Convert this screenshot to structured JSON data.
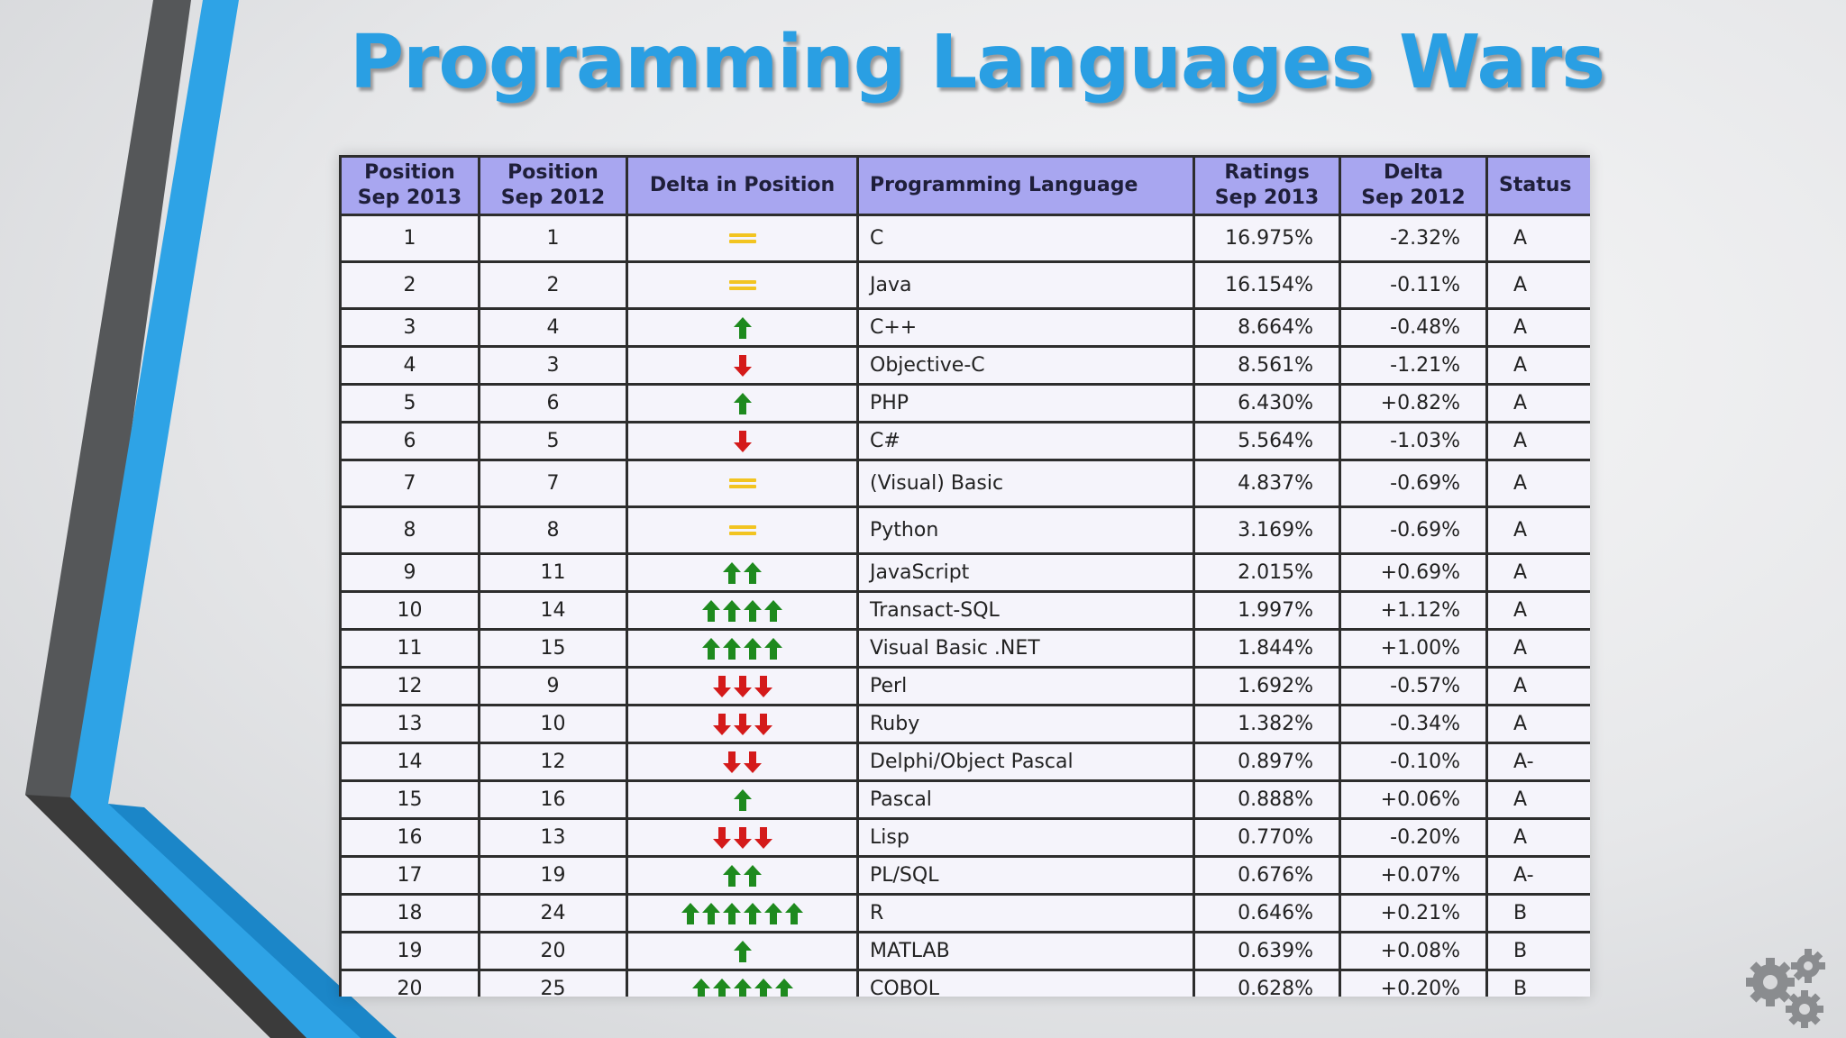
{
  "slide": {
    "title": "Programming Languages Wars"
  },
  "table": {
    "headers": {
      "pos2013": [
        "Position",
        "Sep 2013"
      ],
      "pos2012": [
        "Position",
        "Sep 2012"
      ],
      "delta_position": "Delta in Position",
      "language": "Programming Language",
      "ratings": [
        "Ratings",
        "Sep 2013"
      ],
      "delta": [
        "Delta",
        "Sep 2012"
      ],
      "status": "Status"
    },
    "rows": [
      {
        "pos2013": "1",
        "pos2012": "1",
        "change": 0,
        "language": "C",
        "rating": "16.975%",
        "delta": "-2.32%",
        "status": "A",
        "tall": true
      },
      {
        "pos2013": "2",
        "pos2012": "2",
        "change": 0,
        "language": "Java",
        "rating": "16.154%",
        "delta": "-0.11%",
        "status": "A",
        "tall": true
      },
      {
        "pos2013": "3",
        "pos2012": "4",
        "change": 1,
        "language": "C++",
        "rating": "8.664%",
        "delta": "-0.48%",
        "status": "A"
      },
      {
        "pos2013": "4",
        "pos2012": "3",
        "change": -1,
        "language": "Objective-C",
        "rating": "8.561%",
        "delta": "-1.21%",
        "status": "A"
      },
      {
        "pos2013": "5",
        "pos2012": "6",
        "change": 1,
        "language": "PHP",
        "rating": "6.430%",
        "delta": "+0.82%",
        "status": "A"
      },
      {
        "pos2013": "6",
        "pos2012": "5",
        "change": -1,
        "language": "C#",
        "rating": "5.564%",
        "delta": "-1.03%",
        "status": "A"
      },
      {
        "pos2013": "7",
        "pos2012": "7",
        "change": 0,
        "language": "(Visual) Basic",
        "rating": "4.837%",
        "delta": "-0.69%",
        "status": "A",
        "tall": true
      },
      {
        "pos2013": "8",
        "pos2012": "8",
        "change": 0,
        "language": "Python",
        "rating": "3.169%",
        "delta": "-0.69%",
        "status": "A",
        "tall": true
      },
      {
        "pos2013": "9",
        "pos2012": "11",
        "change": 2,
        "language": "JavaScript",
        "rating": "2.015%",
        "delta": "+0.69%",
        "status": "A"
      },
      {
        "pos2013": "10",
        "pos2012": "14",
        "change": 4,
        "language": "Transact-SQL",
        "rating": "1.997%",
        "delta": "+1.12%",
        "status": "A"
      },
      {
        "pos2013": "11",
        "pos2012": "15",
        "change": 4,
        "language": "Visual Basic .NET",
        "rating": "1.844%",
        "delta": "+1.00%",
        "status": "A"
      },
      {
        "pos2013": "12",
        "pos2012": "9",
        "change": -3,
        "language": "Perl",
        "rating": "1.692%",
        "delta": "-0.57%",
        "status": "A"
      },
      {
        "pos2013": "13",
        "pos2012": "10",
        "change": -3,
        "language": "Ruby",
        "rating": "1.382%",
        "delta": "-0.34%",
        "status": "A"
      },
      {
        "pos2013": "14",
        "pos2012": "12",
        "change": -2,
        "language": "Delphi/Object Pascal",
        "rating": "0.897%",
        "delta": "-0.10%",
        "status": "A-"
      },
      {
        "pos2013": "15",
        "pos2012": "16",
        "change": 1,
        "language": "Pascal",
        "rating": "0.888%",
        "delta": "+0.06%",
        "status": "A"
      },
      {
        "pos2013": "16",
        "pos2012": "13",
        "change": -3,
        "language": "Lisp",
        "rating": "0.770%",
        "delta": "-0.20%",
        "status": "A"
      },
      {
        "pos2013": "17",
        "pos2012": "19",
        "change": 2,
        "language": "PL/SQL",
        "rating": "0.676%",
        "delta": "+0.07%",
        "status": "A-"
      },
      {
        "pos2013": "18",
        "pos2012": "24",
        "change": 6,
        "language": "R",
        "rating": "0.646%",
        "delta": "+0.21%",
        "status": "B"
      },
      {
        "pos2013": "19",
        "pos2012": "20",
        "change": 1,
        "language": "MATLAB",
        "rating": "0.639%",
        "delta": "+0.08%",
        "status": "B"
      },
      {
        "pos2013": "20",
        "pos2012": "25",
        "change": 5,
        "language": "COBOL",
        "rating": "0.628%",
        "delta": "+0.20%",
        "status": "B"
      }
    ]
  },
  "colors": {
    "title": "#2a9fe3",
    "header_bg": "#a8a6f0",
    "arrow_up": "#1e8a1e",
    "arrow_down": "#d41a1a",
    "equal": "#f2c421",
    "accent_blue": "#2ea3e6",
    "accent_dark": "#3a3a3a"
  },
  "icons": {
    "up": "arrow-up-icon",
    "down": "arrow-down-icon",
    "same": "equals-icon",
    "corner": "gears-icon"
  }
}
